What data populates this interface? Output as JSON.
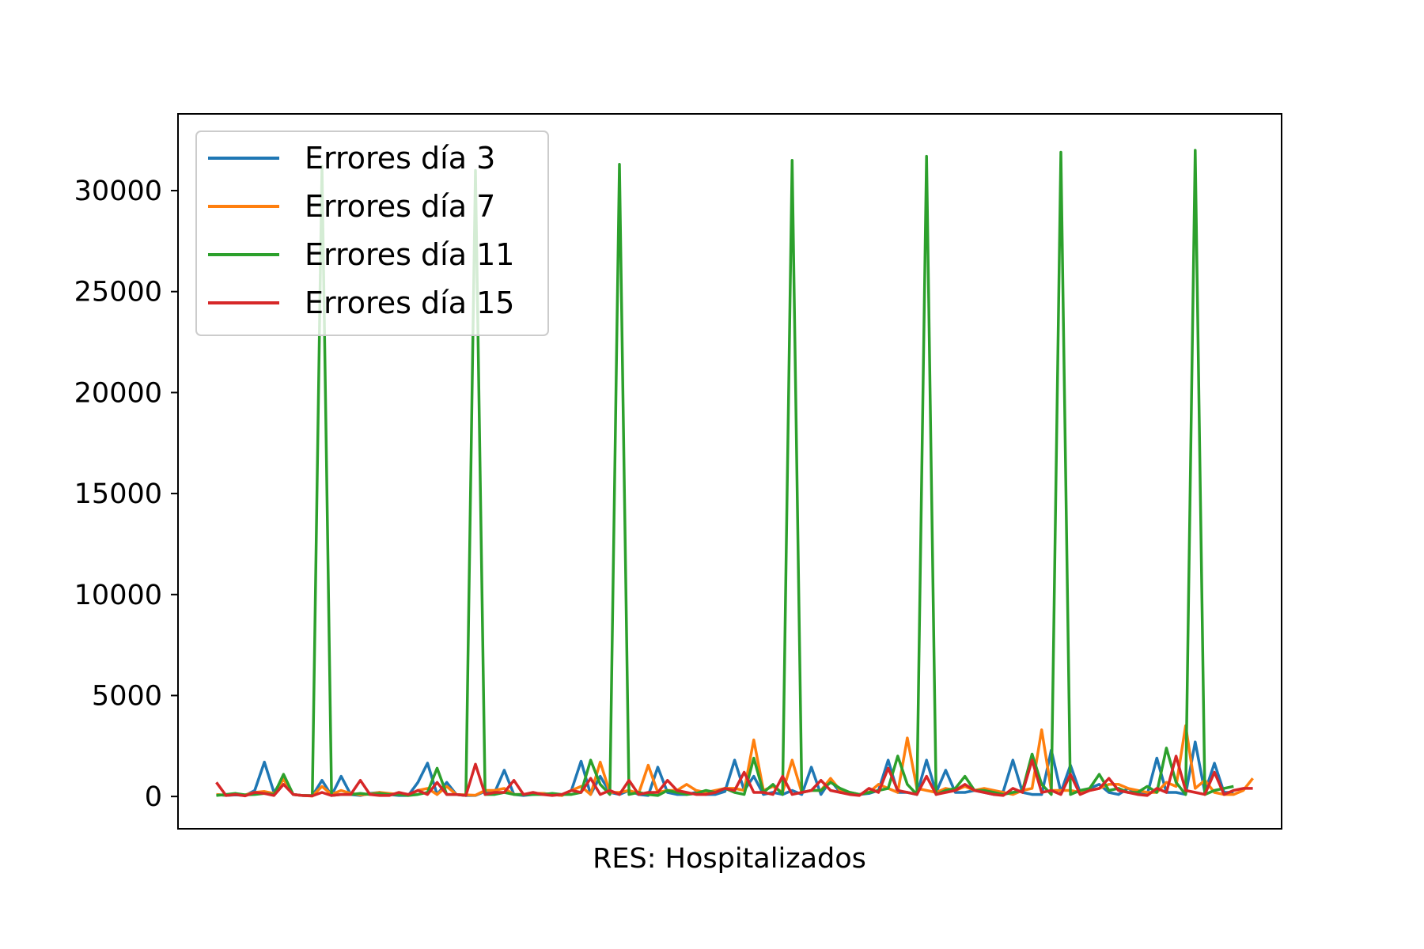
{
  "chart_data": {
    "type": "line",
    "title": "",
    "xlabel": "RES: Hospitalizados",
    "ylabel": "",
    "ylim": [
      -1600,
      33800
    ],
    "xlim": [
      -4,
      111
    ],
    "yticks": [
      0,
      5000,
      10000,
      15000,
      20000,
      25000,
      30000
    ],
    "xticks_visible": false,
    "grid": false,
    "legend_position": "upper-left",
    "series": [
      {
        "name": "Errores día 3",
        "color": "#1f77b4",
        "values": [
          100,
          50,
          80,
          50,
          300,
          1700,
          200,
          900,
          100,
          50,
          30,
          800,
          50,
          1000,
          100,
          50,
          150,
          200,
          100,
          50,
          50,
          700,
          1650,
          100,
          700,
          100,
          50,
          50,
          250,
          200,
          1300,
          100,
          50,
          100,
          150,
          100,
          50,
          300,
          1750,
          100,
          1000,
          200,
          100,
          300,
          100,
          50,
          1450,
          200,
          100,
          100,
          200,
          100,
          100,
          250,
          1800,
          300,
          1000,
          100,
          200,
          100,
          300,
          100,
          1450,
          100,
          800,
          200,
          200,
          100,
          150,
          300,
          1800,
          200,
          200,
          100,
          1800,
          200,
          1300,
          200,
          200,
          300,
          200,
          100,
          250,
          1800,
          200,
          100,
          100,
          2300,
          200,
          1550,
          200,
          400,
          600,
          200,
          100,
          400,
          150,
          100,
          1900,
          200,
          200,
          100,
          2700,
          200,
          1650,
          200,
          200
        ]
      },
      {
        "name": "Errores día 7",
        "color": "#ff7f0e",
        "values": [
          100,
          60,
          100,
          80,
          200,
          250,
          150,
          850,
          100,
          50,
          20,
          500,
          100,
          300,
          150,
          80,
          120,
          200,
          150,
          100,
          60,
          300,
          400,
          100,
          500,
          100,
          80,
          60,
          300,
          300,
          400,
          100,
          100,
          150,
          150,
          100,
          50,
          300,
          500,
          100,
          1700,
          200,
          200,
          300,
          150,
          1550,
          200,
          300,
          300,
          600,
          300,
          200,
          300,
          400,
          400,
          300,
          2800,
          300,
          500,
          200,
          1800,
          200,
          300,
          300,
          900,
          300,
          200,
          100,
          200,
          600,
          400,
          200,
          2900,
          400,
          300,
          200,
          400,
          300,
          500,
          300,
          400,
          300,
          200,
          100,
          300,
          400,
          3300,
          300,
          300,
          300,
          200,
          300,
          400,
          600,
          600,
          400,
          300,
          200,
          200,
          700,
          500,
          3500,
          400,
          800,
          200,
          100,
          100,
          300,
          900
        ]
      },
      {
        "name": "Errores día 11",
        "color": "#2ca02c",
        "values": [
          50,
          100,
          150,
          80,
          100,
          150,
          100,
          1100,
          100,
          50,
          50,
          31200,
          50,
          100,
          100,
          150,
          100,
          150,
          100,
          100,
          50,
          100,
          200,
          1400,
          100,
          100,
          50,
          31000,
          100,
          100,
          200,
          100,
          100,
          100,
          100,
          150,
          100,
          100,
          200,
          1800,
          600,
          100,
          31300,
          100,
          200,
          100,
          50,
          300,
          200,
          100,
          150,
          300,
          200,
          400,
          200,
          100,
          1900,
          200,
          600,
          100,
          31500,
          200,
          300,
          300,
          700,
          400,
          200,
          100,
          200,
          300,
          400,
          2000,
          600,
          100,
          31700,
          100,
          300,
          400,
          1000,
          300,
          300,
          200,
          100,
          200,
          300,
          2100,
          600,
          100,
          31900,
          100,
          300,
          400,
          1100,
          300,
          400,
          200,
          200,
          500,
          200,
          2400,
          700,
          100,
          32000,
          100,
          300,
          400,
          500
        ]
      },
      {
        "name": "Errores día 15",
        "color": "#d62728",
        "values": [
          700,
          50,
          100,
          30,
          200,
          150,
          50,
          600,
          100,
          50,
          30,
          200,
          50,
          100,
          100,
          800,
          100,
          50,
          50,
          200,
          100,
          300,
          100,
          700,
          100,
          100,
          50,
          1600,
          100,
          200,
          200,
          800,
          100,
          200,
          100,
          50,
          100,
          300,
          200,
          900,
          100,
          300,
          100,
          800,
          100,
          200,
          200,
          800,
          300,
          200,
          100,
          100,
          200,
          400,
          300,
          1200,
          200,
          200,
          100,
          1000,
          100,
          200,
          300,
          800,
          300,
          200,
          100,
          50,
          400,
          200,
          1400,
          300,
          200,
          100,
          1000,
          100,
          200,
          300,
          600,
          300,
          200,
          100,
          50,
          400,
          200,
          1800,
          200,
          300,
          100,
          1100,
          100,
          300,
          400,
          900,
          300,
          200,
          100,
          50,
          400,
          200,
          2000,
          300,
          200,
          100,
          1200,
          100,
          300,
          400,
          400
        ]
      }
    ]
  }
}
